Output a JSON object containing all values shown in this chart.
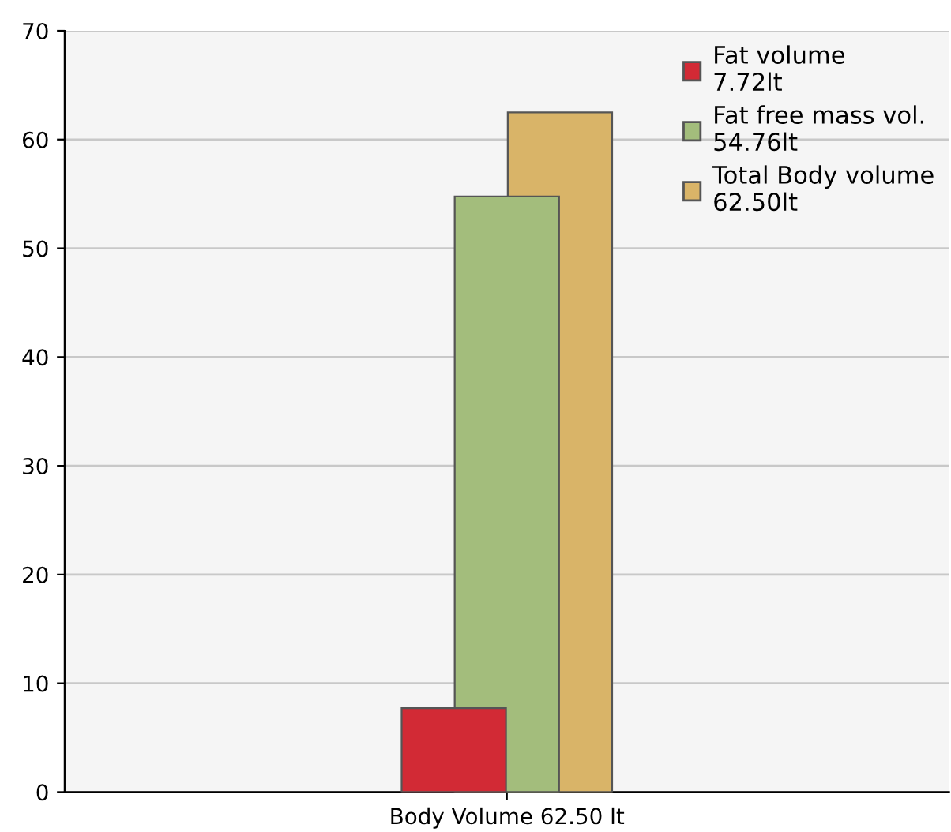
{
  "chart_data": {
    "type": "bar",
    "categories": [
      "Body Volume 62.50 lt"
    ],
    "series": [
      {
        "name": "Fat volume\n7.72lt",
        "color": "#d22a35",
        "values": [
          7.72
        ]
      },
      {
        "name": "Fat free mass vol.\n54.76lt",
        "color": "#a3bd7c",
        "values": [
          54.76
        ]
      },
      {
        "name": "Total Body volume\n62.50lt",
        "color": "#d9b468",
        "values": [
          62.5
        ]
      }
    ],
    "ylim": [
      0,
      70
    ],
    "yticks": [
      0,
      10,
      20,
      30,
      40,
      50,
      60,
      70
    ],
    "grid": "y",
    "legend": "top right"
  }
}
